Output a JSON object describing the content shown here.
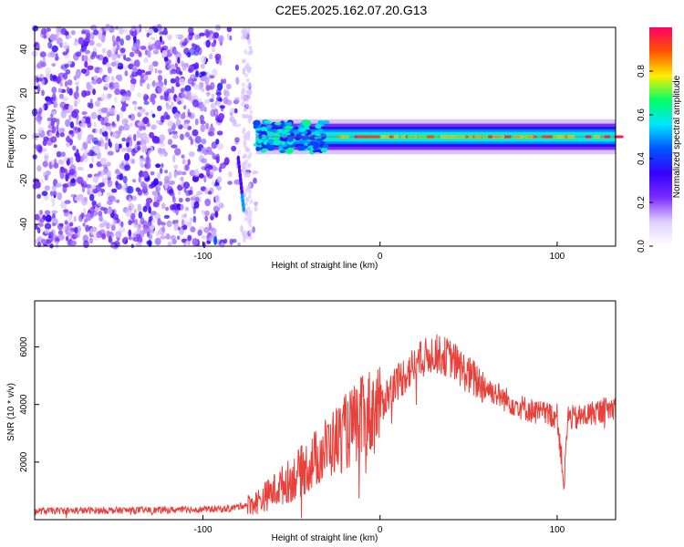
{
  "title": "C2E5.2025.162.07.20.G13",
  "colors": {
    "snr_line": "#e8403a",
    "frame": "#000000"
  },
  "colorbar": {
    "label": "Normalized spectral amplitude",
    "ticks": [
      0.0,
      0.2,
      0.4,
      0.6,
      0.8
    ],
    "tick_labels": [
      "0.0",
      "0.2",
      "0.4",
      "0.6",
      "0.8"
    ],
    "range": [
      0,
      1
    ],
    "colormap": [
      "#ffffff",
      "#e0d0ff",
      "#7a2bff",
      "#3300ff",
      "#0055ff",
      "#00e5ff",
      "#00ff66",
      "#ffee00",
      "#ff5500",
      "#ff0066"
    ]
  },
  "chart_data": [
    {
      "type": "heatmap",
      "title": "C2E5.2025.162.07.20.G13",
      "xlabel": "Height of straight line (km)",
      "ylabel": "Frequency (Hz)",
      "xlim": [
        -195,
        133
      ],
      "ylim": [
        -50,
        50
      ],
      "xticks": [
        -100,
        0,
        100
      ],
      "xtick_labels": [
        "-100",
        "0",
        "100"
      ],
      "yticks": [
        -40,
        -20,
        0,
        20,
        40
      ],
      "ytick_labels": [
        "-40",
        "-20",
        "0",
        "20",
        "40"
      ],
      "features": [
        {
          "kind": "scatter_noise",
          "x_range": [
            -195,
            -70
          ],
          "freq_range": [
            -50,
            50
          ],
          "amplitude": 0.15
        },
        {
          "kind": "band",
          "x_range": [
            -70,
            133
          ],
          "center_hz": 0,
          "halfwidth_hz": 4,
          "peak_amplitude": 0.95
        },
        {
          "kind": "streak",
          "x": [
            -80,
            -77
          ],
          "freq": [
            -10,
            -33
          ],
          "amplitude": 0.3
        }
      ]
    },
    {
      "type": "line",
      "xlabel": "Height of straight line (km)",
      "ylabel": "SNR (10 * v/v)",
      "xlim": [
        -195,
        133
      ],
      "ylim": [
        0,
        7600
      ],
      "xticks": [
        -100,
        0,
        100
      ],
      "xtick_labels": [
        "-100",
        "0",
        "100"
      ],
      "yticks": [
        2000,
        4000,
        6000
      ],
      "ytick_labels": [
        "2000",
        "4000",
        "6000"
      ],
      "series": [
        {
          "x": [
            -195,
            -160,
            -120,
            -85,
            -70,
            -60,
            -50,
            -40,
            -30,
            -20,
            -10,
            0,
            10,
            20,
            30,
            40,
            50,
            60,
            70,
            80,
            90,
            100,
            104,
            106,
            110,
            120,
            133
          ],
          "y": [
            300,
            320,
            330,
            380,
            600,
            1000,
            1400,
            1900,
            2500,
            3000,
            3500,
            4000,
            4800,
            5400,
            5800,
            5600,
            5000,
            4600,
            4200,
            3900,
            3700,
            3600,
            1200,
            3600,
            3500,
            3700,
            3900
          ]
        }
      ]
    }
  ]
}
